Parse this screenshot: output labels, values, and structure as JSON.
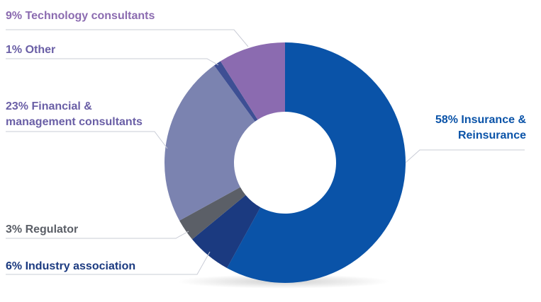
{
  "chart_data": {
    "type": "pie",
    "style": "donut",
    "slices": [
      {
        "label": "58% Insurance & Reinsurance",
        "lines": [
          "58% Insurance &",
          "Reinsurance"
        ],
        "value": 58,
        "color": "#0a53a8",
        "label_color": "#0a53a8"
      },
      {
        "label": "6% Industry association",
        "lines": [
          "6% Industry association"
        ],
        "value": 6,
        "color": "#1b3a80",
        "label_color": "#1b3a80"
      },
      {
        "label": "3% Regulator",
        "lines": [
          "3% Regulator"
        ],
        "value": 3,
        "color": "#5b5f67",
        "label_color": "#5b5f67"
      },
      {
        "label": "23% Financial & management consultants",
        "lines": [
          "23% Financial &",
          "management consultants"
        ],
        "value": 23,
        "color": "#7b83b0",
        "label_color": "#6a5fa6"
      },
      {
        "label": "1% Other",
        "lines": [
          "1% Other"
        ],
        "value": 1,
        "color": "#3e4f94",
        "label_color": "#6a5fa6"
      },
      {
        "label": "9% Technology consultants",
        "lines": [
          "9% Technology consultants"
        ],
        "value": 9,
        "color": "#8b6bb0",
        "label_color": "#8b6bb0"
      }
    ],
    "start_angle": "12 o'clock",
    "direction": "clockwise",
    "legend": "none",
    "labels": "leader lines"
  }
}
